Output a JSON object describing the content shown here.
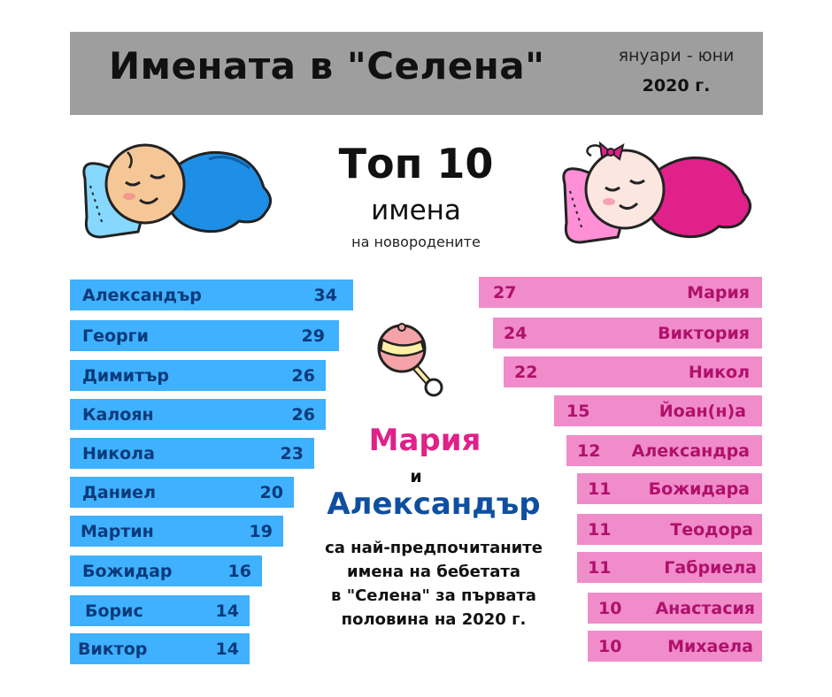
{
  "header": {
    "title": "Имената в \"Селена\"",
    "period": "януари - юни",
    "year": "2020 г."
  },
  "top": {
    "title": "Топ 10",
    "subtitle": "имена",
    "small": "на новородените"
  },
  "boys": [
    {
      "name": "Александър",
      "count": "34"
    },
    {
      "name": "Георги",
      "count": "29"
    },
    {
      "name": "Димитър",
      "count": "26"
    },
    {
      "name": "Калоян",
      "count": "26"
    },
    {
      "name": "Никола",
      "count": "23"
    },
    {
      "name": "Даниел",
      "count": "20"
    },
    {
      "name": "Мартин",
      "count": "19"
    },
    {
      "name": "Божидар",
      "count": "16"
    },
    {
      "name": "Борис",
      "count": "14"
    },
    {
      "name": "Виктор",
      "count": "14"
    }
  ],
  "girls": [
    {
      "name": "Мария",
      "count": "27"
    },
    {
      "name": "Виктория",
      "count": "24"
    },
    {
      "name": "Никол",
      "count": "22"
    },
    {
      "name": "Йоан(н)а",
      "count": "15"
    },
    {
      "name": "Александра",
      "count": "12"
    },
    {
      "name": "Божидара",
      "count": "11"
    },
    {
      "name": "Теодора",
      "count": "11"
    },
    {
      "name": "Габриела",
      "count": "11"
    },
    {
      "name": "Анастасия",
      "count": "10"
    },
    {
      "name": "Михаела",
      "count": "10"
    }
  ],
  "highlight": {
    "girl_name": "Мария",
    "and": "и",
    "boy_name": "Александър",
    "caption_lines": [
      "са най-предпочитаните",
      "имена на бебетата",
      "в \"Селена\" за първата",
      "половина на 2020 г."
    ]
  },
  "icons": {
    "boy": "sleeping-baby-boy-icon",
    "girl": "sleeping-baby-girl-icon",
    "center": "baby-rattle-icon"
  },
  "colors": {
    "header_bg": "#9e9e9e",
    "boy_bar": "#3fb1ff",
    "girl_bar": "#f08cc9",
    "girl_text": "#e0218a",
    "boy_text": "#0f4fa0"
  }
}
